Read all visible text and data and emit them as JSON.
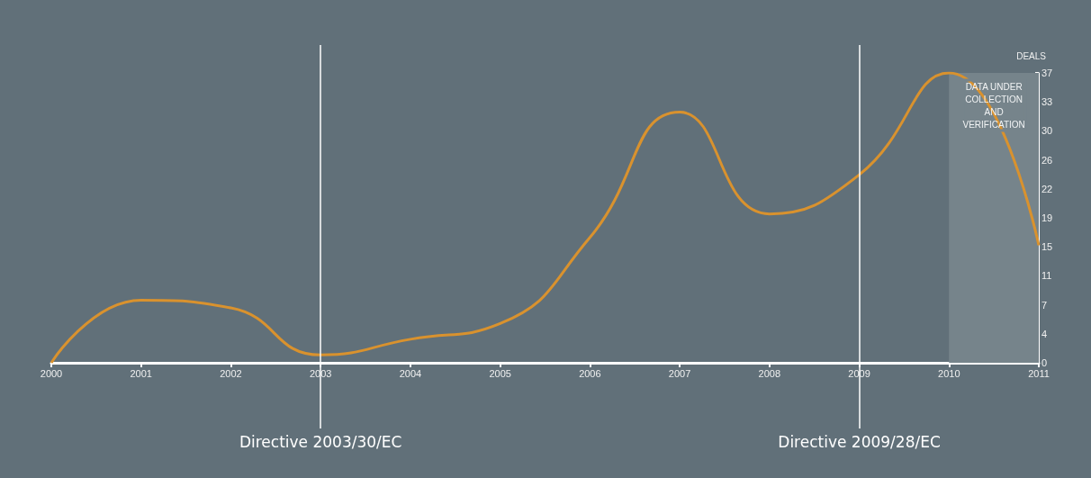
{
  "chart_data": {
    "type": "line",
    "ylabel": "DEALS",
    "x": [
      2000,
      2001,
      2002,
      2003,
      2004,
      2005,
      2006,
      2007,
      2008,
      2009,
      2010,
      2011
    ],
    "series": [
      {
        "color": "#d9922e",
        "values": [
          0,
          8,
          7,
          1,
          3,
          5,
          16,
          32,
          19,
          24,
          37,
          15
        ]
      }
    ],
    "xlim": [
      2000,
      2011
    ],
    "xticks": [
      2000,
      2001,
      2002,
      2003,
      2004,
      2005,
      2006,
      2007,
      2008,
      2009,
      2010,
      2011
    ],
    "ylim": [
      0,
      37
    ],
    "yticks": [
      0,
      {
        "value": 3.7,
        "label": "4"
      },
      {
        "value": 7.4,
        "label": "7"
      },
      {
        "value": 11.1,
        "label": "11"
      },
      {
        "value": 14.8,
        "label": "15"
      },
      {
        "value": 18.5,
        "label": "19"
      },
      {
        "value": 22.2,
        "label": "22"
      },
      {
        "value": 25.9,
        "label": "26"
      },
      {
        "value": 29.6,
        "label": "30"
      },
      {
        "value": 33.3,
        "label": "33"
      },
      37
    ],
    "ref_lines": [
      {
        "axis": "x",
        "value": 2003,
        "label": "Directive 2003/30/EC",
        "color": "#ffffff"
      },
      {
        "axis": "x",
        "value": 2009,
        "label": "Directive 2009/28/EC",
        "color": "#ffffff"
      }
    ],
    "bands": [
      {
        "axis": "x",
        "from": 2010,
        "to": 2011,
        "label": "DATA UNDER COLLECTION AND VERIFICATION",
        "color": "#76848b"
      }
    ],
    "grid": false,
    "marker": "none",
    "line_style": "solid"
  }
}
